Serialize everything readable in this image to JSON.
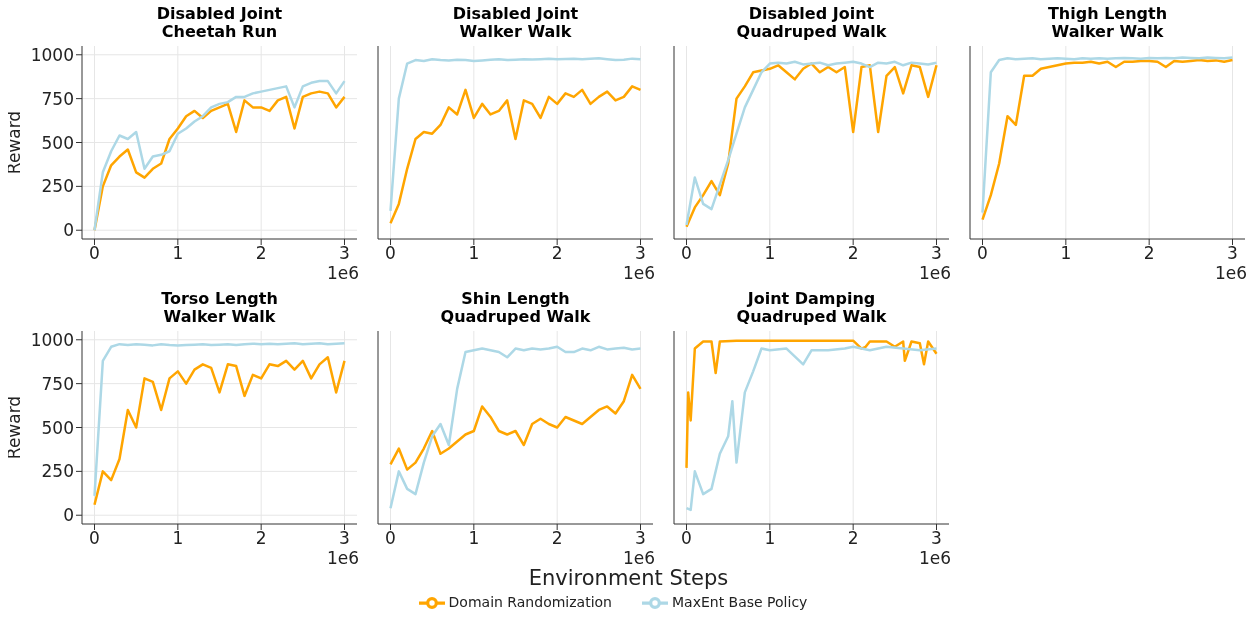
{
  "chart_data": [
    {
      "type": "line",
      "title": "Disabled Joint\nCheetah Run",
      "ylabel": "Reward",
      "annotations": [
        "1e6"
      ],
      "grid": true,
      "xlim": [
        -0.15,
        3.15
      ],
      "ylim": [
        -50,
        1050
      ],
      "xticks": [
        0,
        1,
        2,
        3
      ],
      "yticks": [
        0,
        250,
        500,
        750,
        1000
      ],
      "x": [
        0,
        0.1,
        0.2,
        0.3,
        0.4,
        0.5,
        0.6,
        0.7,
        0.8,
        0.9,
        1.0,
        1.1,
        1.2,
        1.3,
        1.4,
        1.5,
        1.6,
        1.7,
        1.8,
        1.9,
        2.0,
        2.1,
        2.2,
        2.3,
        2.4,
        2.5,
        2.6,
        2.7,
        2.8,
        2.9,
        3.0
      ],
      "series": [
        {
          "color": "#ffa500",
          "values": [
            0,
            250,
            370,
            420,
            460,
            330,
            300,
            350,
            380,
            520,
            580,
            650,
            680,
            640,
            680,
            700,
            720,
            560,
            740,
            700,
            700,
            680,
            740,
            760,
            580,
            760,
            780,
            790,
            780,
            700,
            760
          ]
        },
        {
          "color": "#add8e6",
          "values": [
            0,
            330,
            450,
            540,
            520,
            560,
            350,
            420,
            430,
            450,
            550,
            580,
            620,
            650,
            700,
            720,
            730,
            760,
            760,
            780,
            790,
            800,
            810,
            820,
            700,
            820,
            840,
            850,
            850,
            780,
            850
          ]
        }
      ]
    },
    {
      "type": "line",
      "title": "Disabled Joint\nWalker Walk",
      "annotations": [
        "1e6"
      ],
      "grid": true,
      "tick_labels": "x",
      "xlim": [
        -0.15,
        3.15
      ],
      "ylim": [
        -50,
        1050
      ],
      "xticks": [
        0,
        1,
        2,
        3
      ],
      "yticks": [
        0,
        250,
        500,
        750,
        1000
      ],
      "x": [
        0,
        0.1,
        0.2,
        0.3,
        0.4,
        0.5,
        0.6,
        0.7,
        0.8,
        0.9,
        1.0,
        1.1,
        1.2,
        1.3,
        1.4,
        1.5,
        1.6,
        1.7,
        1.8,
        1.9,
        2.0,
        2.1,
        2.2,
        2.3,
        2.4,
        2.5,
        2.6,
        2.7,
        2.8,
        2.9,
        3.0
      ],
      "series": [
        {
          "color": "#ffa500",
          "values": [
            40,
            150,
            350,
            520,
            560,
            550,
            600,
            700,
            660,
            800,
            640,
            720,
            660,
            680,
            740,
            520,
            740,
            720,
            640,
            760,
            720,
            780,
            760,
            800,
            720,
            760,
            790,
            740,
            760,
            820,
            800
          ]
        },
        {
          "color": "#add8e6",
          "values": [
            110,
            750,
            950,
            970,
            965,
            975,
            970,
            968,
            972,
            970,
            965,
            968,
            972,
            975,
            970,
            972,
            975,
            973,
            975,
            978,
            975,
            976,
            978,
            975,
            978,
            980,
            975,
            970,
            972,
            978,
            975
          ]
        }
      ]
    },
    {
      "type": "line",
      "title": "Disabled Joint\nQuadruped Walk",
      "annotations": [
        "1e6"
      ],
      "grid": true,
      "tick_labels": "x",
      "xlim": [
        -0.15,
        3.15
      ],
      "ylim": [
        -50,
        1050
      ],
      "xticks": [
        0,
        1,
        2,
        3
      ],
      "yticks": [
        0,
        250,
        500,
        750,
        1000
      ],
      "x": [
        0,
        0.1,
        0.2,
        0.3,
        0.4,
        0.5,
        0.6,
        0.7,
        0.8,
        0.9,
        1.0,
        1.1,
        1.2,
        1.3,
        1.4,
        1.5,
        1.6,
        1.7,
        1.8,
        1.9,
        2.0,
        2.1,
        2.2,
        2.3,
        2.4,
        2.5,
        2.6,
        2.7,
        2.8,
        2.9,
        3.0
      ],
      "series": [
        {
          "color": "#ffa500",
          "values": [
            20,
            130,
            200,
            280,
            200,
            380,
            750,
            820,
            900,
            910,
            920,
            940,
            900,
            860,
            920,
            950,
            900,
            930,
            900,
            930,
            560,
            930,
            940,
            560,
            880,
            930,
            780,
            940,
            930,
            760,
            940
          ]
        },
        {
          "color": "#add8e6",
          "values": [
            30,
            300,
            150,
            120,
            260,
            400,
            550,
            700,
            800,
            900,
            950,
            955,
            950,
            960,
            945,
            950,
            955,
            940,
            950,
            955,
            960,
            950,
            930,
            955,
            950,
            960,
            940,
            955,
            950,
            945,
            955
          ]
        }
      ]
    },
    {
      "type": "line",
      "title": "Thigh Length\nWalker Walk",
      "annotations": [
        "1e6"
      ],
      "grid": true,
      "tick_labels": "x",
      "xlim": [
        -0.15,
        3.15
      ],
      "ylim": [
        -50,
        1050
      ],
      "xticks": [
        0,
        1,
        2,
        3
      ],
      "yticks": [
        0,
        250,
        500,
        750,
        1000
      ],
      "x": [
        0,
        0.1,
        0.2,
        0.3,
        0.4,
        0.5,
        0.6,
        0.7,
        0.8,
        0.9,
        1.0,
        1.1,
        1.2,
        1.3,
        1.4,
        1.5,
        1.6,
        1.7,
        1.8,
        1.9,
        2.0,
        2.1,
        2.2,
        2.3,
        2.4,
        2.5,
        2.6,
        2.7,
        2.8,
        2.9,
        3.0
      ],
      "series": [
        {
          "color": "#ffa500",
          "values": [
            60,
            200,
            380,
            650,
            600,
            880,
            880,
            920,
            930,
            940,
            950,
            955,
            955,
            960,
            950,
            960,
            930,
            960,
            960,
            965,
            965,
            960,
            930,
            965,
            960,
            965,
            970,
            965,
            968,
            960,
            970
          ]
        },
        {
          "color": "#add8e6",
          "values": [
            100,
            900,
            970,
            980,
            975,
            978,
            980,
            975,
            978,
            980,
            978,
            975,
            980,
            978,
            980,
            978,
            980,
            982,
            980,
            978,
            982,
            980,
            982,
            980,
            985,
            982,
            980,
            985,
            982,
            980,
            985
          ]
        }
      ]
    },
    {
      "type": "line",
      "title": "Torso Length\nWalker Walk",
      "ylabel": "Reward",
      "annotations": [
        "1e6"
      ],
      "grid": true,
      "xlim": [
        -0.15,
        3.15
      ],
      "ylim": [
        -50,
        1050
      ],
      "xticks": [
        0,
        1,
        2,
        3
      ],
      "yticks": [
        0,
        250,
        500,
        750,
        1000
      ],
      "x": [
        0,
        0.1,
        0.2,
        0.3,
        0.4,
        0.5,
        0.6,
        0.7,
        0.8,
        0.9,
        1.0,
        1.1,
        1.2,
        1.3,
        1.4,
        1.5,
        1.6,
        1.7,
        1.8,
        1.9,
        2.0,
        2.1,
        2.2,
        2.3,
        2.4,
        2.5,
        2.6,
        2.7,
        2.8,
        2.9,
        3.0
      ],
      "series": [
        {
          "color": "#ffa500",
          "values": [
            60,
            250,
            200,
            320,
            600,
            500,
            780,
            760,
            600,
            780,
            820,
            750,
            830,
            860,
            840,
            700,
            860,
            850,
            680,
            800,
            780,
            860,
            850,
            880,
            830,
            880,
            780,
            860,
            900,
            700,
            880
          ]
        },
        {
          "color": "#add8e6",
          "values": [
            110,
            880,
            960,
            975,
            970,
            975,
            972,
            968,
            975,
            970,
            968,
            970,
            972,
            975,
            970,
            972,
            975,
            970,
            975,
            978,
            975,
            978,
            975,
            978,
            980,
            975,
            978,
            980,
            975,
            978,
            980
          ]
        }
      ]
    },
    {
      "type": "line",
      "title": "Shin Length\nQuadruped Walk",
      "xlabel": "Environment Steps",
      "legend": "bottom",
      "annotations": [
        "1e6"
      ],
      "grid": true,
      "tick_labels": "x",
      "xlim": [
        -0.15,
        3.15
      ],
      "ylim": [
        -50,
        1050
      ],
      "xticks": [
        0,
        1,
        2,
        3
      ],
      "yticks": [
        0,
        250,
        500,
        750,
        1000
      ],
      "x": [
        0,
        0.1,
        0.2,
        0.3,
        0.4,
        0.5,
        0.6,
        0.7,
        0.8,
        0.9,
        1.0,
        1.1,
        1.2,
        1.3,
        1.4,
        1.5,
        1.6,
        1.7,
        1.8,
        1.9,
        2.0,
        2.1,
        2.2,
        2.3,
        2.4,
        2.5,
        2.6,
        2.7,
        2.8,
        2.9,
        3.0
      ],
      "series": [
        {
          "name": "Domain Randomization",
          "color": "#ffa500",
          "values": [
            290,
            380,
            260,
            300,
            380,
            480,
            350,
            380,
            420,
            460,
            480,
            620,
            560,
            480,
            460,
            480,
            400,
            520,
            550,
            520,
            500,
            560,
            540,
            520,
            560,
            600,
            620,
            580,
            650,
            800,
            720
          ]
        },
        {
          "name": "MaxEnt Base Policy",
          "color": "#add8e6",
          "values": [
            40,
            250,
            150,
            120,
            300,
            450,
            520,
            400,
            720,
            930,
            940,
            950,
            940,
            930,
            900,
            950,
            940,
            950,
            945,
            950,
            960,
            930,
            930,
            950,
            940,
            960,
            945,
            950,
            955,
            945,
            950
          ]
        }
      ]
    },
    {
      "type": "line",
      "title": "Joint Damping\nQuadruped Walk",
      "annotations": [
        "1e6"
      ],
      "grid": true,
      "tick_labels": "x",
      "xlim": [
        -0.15,
        3.15
      ],
      "ylim": [
        -50,
        1050
      ],
      "xticks": [
        0,
        1,
        2,
        3
      ],
      "yticks": [
        0,
        250,
        500,
        750,
        1000
      ],
      "series": [
        {
          "color": "#ffa500",
          "x": [
            0,
            0.02,
            0.05,
            0.1,
            0.2,
            0.3,
            0.35,
            0.4,
            0.6,
            1.0,
            1.5,
            2.0,
            2.1,
            2.15,
            2.2,
            2.4,
            2.5,
            2.6,
            2.62,
            2.7,
            2.8,
            2.85,
            2.9,
            3.0
          ],
          "values": [
            270,
            700,
            540,
            950,
            990,
            990,
            810,
            990,
            995,
            995,
            995,
            995,
            950,
            960,
            990,
            990,
            960,
            990,
            880,
            990,
            980,
            860,
            990,
            920
          ]
        },
        {
          "color": "#add8e6",
          "x": [
            0,
            0.05,
            0.1,
            0.2,
            0.3,
            0.4,
            0.5,
            0.55,
            0.6,
            0.7,
            0.8,
            0.9,
            1.0,
            1.2,
            1.4,
            1.5,
            1.7,
            1.9,
            2.0,
            2.2,
            2.4,
            2.6,
            2.8,
            3.0
          ],
          "values": [
            40,
            30,
            250,
            120,
            150,
            350,
            450,
            650,
            300,
            700,
            820,
            950,
            940,
            950,
            860,
            940,
            940,
            950,
            960,
            940,
            960,
            950,
            940,
            950
          ]
        }
      ]
    }
  ]
}
